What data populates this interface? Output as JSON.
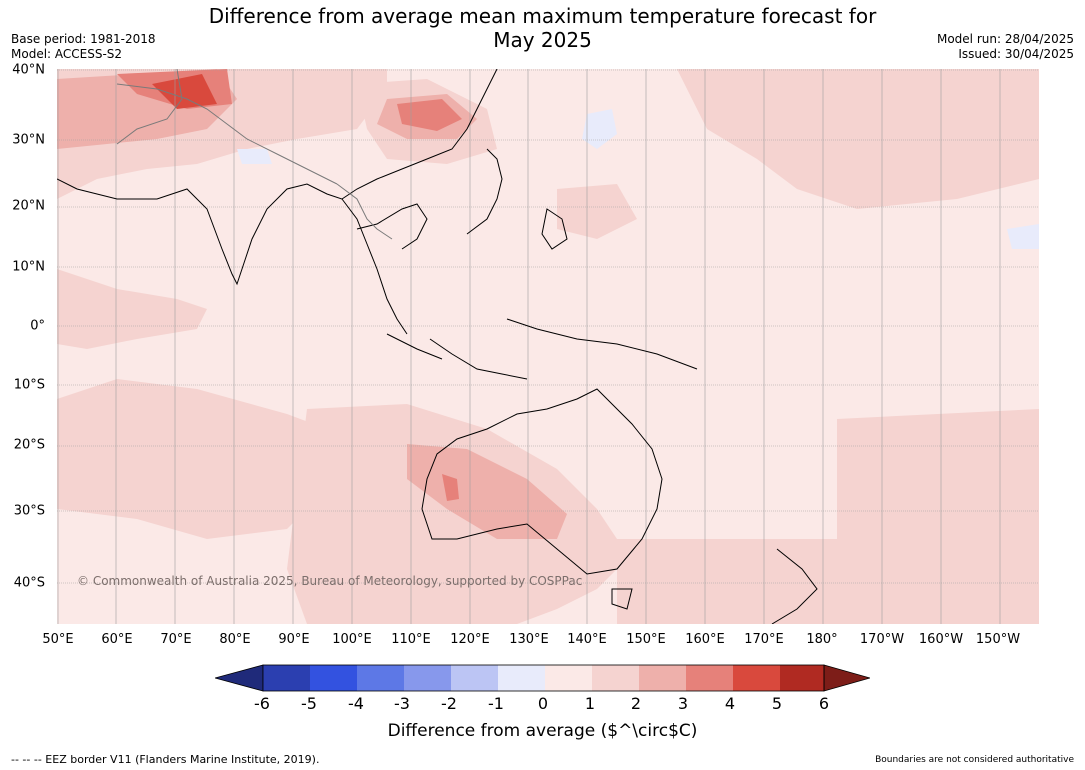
{
  "title_line1": "Difference from average mean maximum temperature forecast for",
  "title_line2": "May 2025",
  "meta_left": {
    "base_period": "Base period: 1981-2018",
    "model": "Model: ACCESS-S2"
  },
  "meta_right": {
    "model_run": "Model run: 28/04/2025",
    "issued": "Issued: 30/04/2025"
  },
  "copyright": "© Commonwealth of Australia 2025, Bureau of Meteorology, supported by COSPPac",
  "lat_labels": [
    "40°N",
    "30°N",
    "20°N",
    "10°N",
    "0°",
    "10°S",
    "20°S",
    "30°S",
    "40°S"
  ],
  "lon_labels": [
    "50°E",
    "60°E",
    "70°E",
    "80°E",
    "90°E",
    "100°E",
    "110°E",
    "120°E",
    "130°E",
    "140°E",
    "150°E",
    "160°E",
    "170°E",
    "180°",
    "170°W",
    "160°W",
    "150°W"
  ],
  "colorbar": {
    "ticks": [
      "-6",
      "-5",
      "-4",
      "-3",
      "-2",
      "-1",
      "0",
      "1",
      "2",
      "3",
      "4",
      "5",
      "6"
    ],
    "colors": [
      "#1f2a7a",
      "#2b3fb0",
      "#3352e0",
      "#5d78e6",
      "#8798ec",
      "#bcc5f4",
      "#e8ebfb",
      "#fbe9e7",
      "#f5d3d0",
      "#eeb0ab",
      "#e6817a",
      "#d9493d",
      "#b02a22",
      "#7d1d18"
    ],
    "label": "Difference from average ($^\\circ$C)"
  },
  "footer_left": "--  --  -- EEZ border V11 (Flanders Marine Institute, 2019).",
  "footer_right": "Boundaries are not considered authoritative"
}
